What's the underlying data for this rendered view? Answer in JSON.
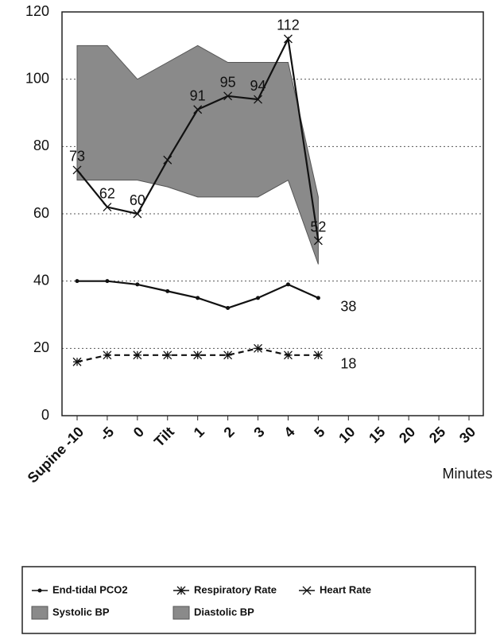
{
  "chart_data": {
    "type": "line",
    "x_label": "Minutes",
    "categories": [
      "Supine -10",
      "-5",
      "0",
      "Tilt",
      "1",
      "2",
      "3",
      "4",
      "5",
      "10",
      "15",
      "20",
      "25",
      "30"
    ],
    "ylim": [
      0,
      120
    ],
    "yticks": [
      0,
      20,
      40,
      60,
      80,
      100,
      120
    ],
    "grid": true,
    "series": [
      {
        "name": "End-tidal PCO2",
        "color": "#111111",
        "marker": "dot",
        "dash": false,
        "values": [
          40,
          40,
          39,
          37,
          35,
          32,
          35,
          39,
          35,
          null,
          null,
          null,
          null,
          null
        ]
      },
      {
        "name": "Respiratory Rate",
        "color": "#111111",
        "marker": "asterisk",
        "dash": true,
        "values": [
          16,
          18,
          18,
          18,
          18,
          18,
          20,
          18,
          18,
          null,
          null,
          null,
          null,
          null
        ]
      },
      {
        "name": "Heart Rate",
        "color": "#111111",
        "marker": "cross",
        "dash": false,
        "values": [
          73,
          62,
          60,
          76,
          91,
          95,
          94,
          112,
          52,
          null,
          null,
          null,
          null,
          null
        ],
        "value_labels": [
          "73",
          "62",
          "60",
          null,
          "91",
          "95",
          "94",
          "112",
          "52",
          null,
          null,
          null,
          null,
          null
        ]
      },
      {
        "name": "Systolic BP",
        "color": "#8a8a8a",
        "marker": "band-top",
        "values": [
          110,
          110,
          100,
          105,
          110,
          105,
          105,
          105,
          65,
          null,
          null,
          null,
          null,
          null
        ]
      },
      {
        "name": "Diastolic BP",
        "color": "#8a8a8a",
        "marker": "band-bottom",
        "values": [
          70,
          70,
          70,
          68,
          65,
          65,
          65,
          70,
          45,
          null,
          null,
          null,
          null,
          null
        ]
      }
    ],
    "annotations": [
      "38",
      "18"
    ]
  }
}
